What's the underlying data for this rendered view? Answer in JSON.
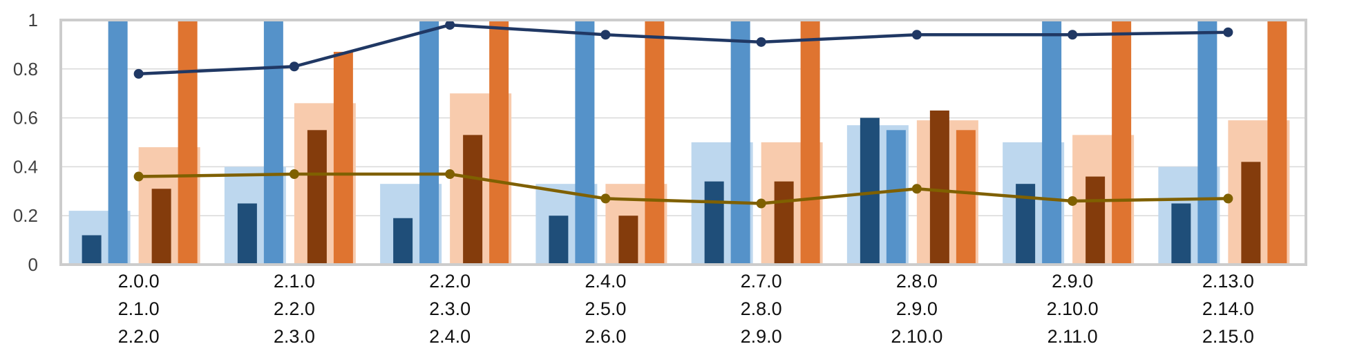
{
  "chart_data": {
    "type": "bar",
    "title": "",
    "xlabel": "",
    "ylabel": "",
    "ylim": [
      0,
      1
    ],
    "yticks": [
      "0",
      "0.2",
      "0.4",
      "0.6",
      "0.8",
      "1"
    ],
    "grid": true,
    "legend": "none",
    "categories": [
      [
        "2.0.0",
        "2.1.0",
        "2.2.0"
      ],
      [
        "2.1.0",
        "2.2.0",
        "2.3.0"
      ],
      [
        "2.2.0",
        "2.3.0",
        "2.4.0"
      ],
      [
        "2.4.0",
        "2.5.0",
        "2.6.0"
      ],
      [
        "2.7.0",
        "2.8.0",
        "2.9.0"
      ],
      [
        "2.8.0",
        "2.9.0",
        "2.10.0"
      ],
      [
        "2.9.0",
        "2.10.0",
        "2.11.0"
      ],
      [
        "2.13.0",
        "2.14.0",
        "2.15.0"
      ]
    ],
    "series": [
      {
        "kind": "wide-bar",
        "group": "blue",
        "color": "#bdd7ee",
        "values": [
          0.22,
          0.4,
          0.33,
          0.33,
          0.5,
          0.57,
          0.5,
          0.4
        ]
      },
      {
        "kind": "narrow-bar",
        "group": "blue",
        "color": "#1f4e79",
        "values": [
          0.12,
          0.25,
          0.19,
          0.2,
          0.34,
          0.6,
          0.33,
          0.25
        ]
      },
      {
        "kind": "narrow-bar",
        "group": "blue",
        "color": "#5592c9",
        "values": [
          1.0,
          1.0,
          1.0,
          1.0,
          1.0,
          0.55,
          1.0,
          1.0
        ]
      },
      {
        "kind": "wide-bar",
        "group": "orange",
        "color": "#f8cbad",
        "values": [
          0.48,
          0.66,
          0.7,
          0.33,
          0.5,
          0.59,
          0.53,
          0.59
        ]
      },
      {
        "kind": "narrow-bar",
        "group": "orange",
        "color": "#843c0c",
        "values": [
          0.31,
          0.55,
          0.53,
          0.2,
          0.34,
          0.63,
          0.36,
          0.42
        ]
      },
      {
        "kind": "narrow-bar",
        "group": "orange",
        "color": "#df7430",
        "values": [
          1.0,
          0.87,
          1.0,
          1.0,
          1.0,
          0.55,
          1.0,
          1.0
        ]
      },
      {
        "kind": "line",
        "color": "#203864",
        "values": [
          0.78,
          0.81,
          0.98,
          0.94,
          0.91,
          0.94,
          0.94,
          0.95
        ]
      },
      {
        "kind": "line",
        "color": "#7f6000",
        "values": [
          0.36,
          0.37,
          0.37,
          0.27,
          0.25,
          0.31,
          0.26,
          0.27
        ]
      }
    ]
  }
}
